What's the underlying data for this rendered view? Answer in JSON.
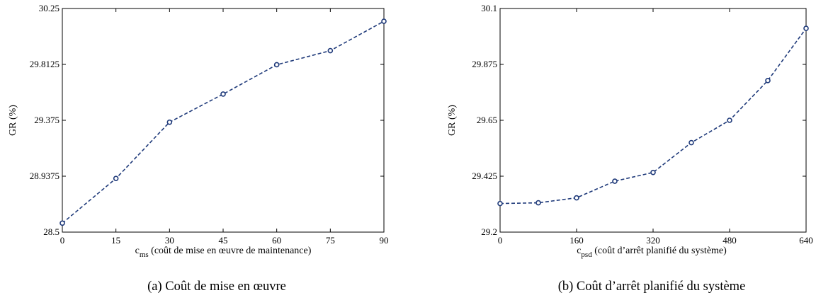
{
  "chart_data": [
    {
      "type": "line",
      "x": [
        0,
        15,
        30,
        45,
        60,
        75,
        90
      ],
      "series": [
        {
          "values": [
            28.57,
            28.92,
            29.36,
            29.58,
            29.81,
            29.92,
            30.15
          ],
          "color": "#1f3a7a"
        }
      ],
      "xticks": [
        0,
        15,
        30,
        45,
        60,
        75,
        90
      ],
      "ytick_labels": [
        "28.5",
        "28.9375",
        "29.375",
        "29.8125",
        "30.25"
      ],
      "xlim": [
        0,
        90
      ],
      "ylim": [
        28.5,
        30.25
      ],
      "ylabel": "GR (%)",
      "xlabel_main": "c",
      "xlabel_sub": "ms",
      "xlabel_rest": " (coût de mise en œuvre de maintenance)",
      "caption": "(a)  Coût de mise en œuvre",
      "marker": "circle",
      "line_style": "dashed"
    },
    {
      "type": "line",
      "x": [
        0,
        80,
        160,
        240,
        320,
        400,
        480,
        560,
        640
      ],
      "series": [
        {
          "values": [
            29.315,
            29.318,
            29.338,
            29.405,
            29.44,
            29.56,
            29.65,
            29.81,
            30.02
          ],
          "color": "#1f3a7a"
        }
      ],
      "xticks": [
        0,
        160,
        320,
        480,
        640
      ],
      "ytick_labels": [
        "29.2",
        "29.425",
        "29.65",
        "29.875",
        "30.1"
      ],
      "xlim": [
        0,
        640
      ],
      "ylim": [
        29.2,
        30.1
      ],
      "ylabel": "GR (%)",
      "xlabel_main": "c",
      "xlabel_sub": "psd",
      "xlabel_rest": " (coût d’arrêt planifié du système)",
      "caption": "(b)  Coût d’arrêt planifié du système",
      "marker": "circle",
      "line_style": "dashed"
    }
  ]
}
